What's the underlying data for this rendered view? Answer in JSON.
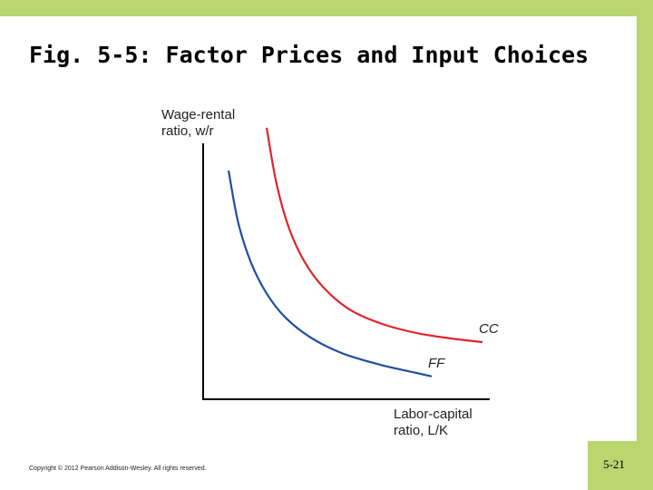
{
  "slide": {
    "title": "Fig. 5-5:  Factor Prices and Input Choices",
    "copyright": "Copyright © 2012 Pearson Addison-Wesley. All rights reserved.",
    "page_number": "5-21",
    "accent_color": "#b9d66f"
  },
  "chart_data": {
    "type": "line",
    "title": "",
    "ylabel": [
      "Wage-rental",
      "ratio, w/r"
    ],
    "xlabel": [
      "Labor-capital",
      "ratio, L/K"
    ],
    "grid": false,
    "series": [
      {
        "name": "CC",
        "color": "#e0242b",
        "points": [
          [
            1.0,
            9.5
          ],
          [
            1.15,
            7.6
          ],
          [
            1.35,
            6.0
          ],
          [
            1.6,
            4.8
          ],
          [
            1.9,
            3.9
          ],
          [
            2.3,
            3.15
          ],
          [
            2.8,
            2.65
          ],
          [
            3.4,
            2.3
          ],
          [
            4.0,
            2.1
          ],
          [
            4.4,
            2.0
          ]
        ]
      },
      {
        "name": "FF",
        "color": "#1f4fa0",
        "points": [
          [
            0.4,
            8.0
          ],
          [
            0.55,
            6.2
          ],
          [
            0.75,
            4.8
          ],
          [
            1.0,
            3.7
          ],
          [
            1.3,
            2.85
          ],
          [
            1.7,
            2.15
          ],
          [
            2.2,
            1.6
          ],
          [
            2.8,
            1.2
          ],
          [
            3.3,
            0.95
          ],
          [
            3.6,
            0.8
          ]
        ]
      }
    ]
  }
}
